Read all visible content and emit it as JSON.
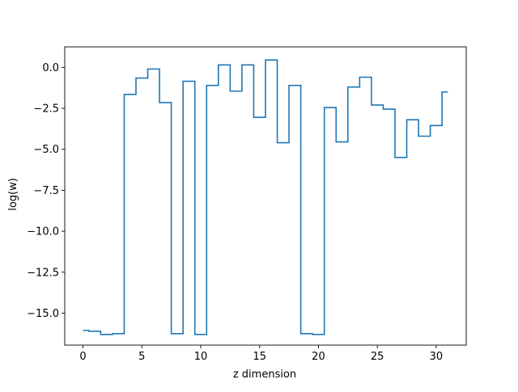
{
  "chart_data": {
    "type": "line",
    "drawstyle": "steps-mid",
    "title": "",
    "xlabel": "z dimension",
    "ylabel": "log(w)",
    "xlim": [
      -1.55,
      32.55
    ],
    "ylim": [
      -16.95,
      1.25
    ],
    "xticks": [
      0,
      5,
      10,
      15,
      20,
      25,
      30
    ],
    "xtick_labels": [
      "0",
      "5",
      "10",
      "15",
      "20",
      "25",
      "30"
    ],
    "yticks": [
      0.0,
      -2.5,
      -5.0,
      -7.5,
      -10.0,
      -12.5,
      -15.0
    ],
    "ytick_labels": [
      "0.0",
      "−2.5",
      "−5.0",
      "−7.5",
      "−10.0",
      "−12.5",
      "−15.0"
    ],
    "grid": false,
    "legend": "none",
    "series": [
      {
        "color": "#1f77b4",
        "x": [
          0,
          1,
          2,
          3,
          4,
          5,
          6,
          7,
          8,
          9,
          10,
          11,
          12,
          13,
          14,
          15,
          16,
          17,
          18,
          19,
          20,
          21,
          22,
          23,
          24,
          25,
          26,
          27,
          28,
          29,
          30,
          31
        ],
        "y": [
          -16.05,
          -16.1,
          -16.3,
          -16.25,
          -1.65,
          -0.65,
          -0.1,
          -2.15,
          -16.25,
          -0.85,
          -16.3,
          -1.1,
          0.15,
          -1.45,
          0.15,
          -3.05,
          0.45,
          -4.6,
          -1.1,
          -16.25,
          -16.3,
          -2.45,
          -4.55,
          -1.2,
          -0.6,
          -2.3,
          -2.55,
          -5.5,
          -3.2,
          -4.2,
          -3.55,
          -1.5
        ]
      }
    ]
  }
}
